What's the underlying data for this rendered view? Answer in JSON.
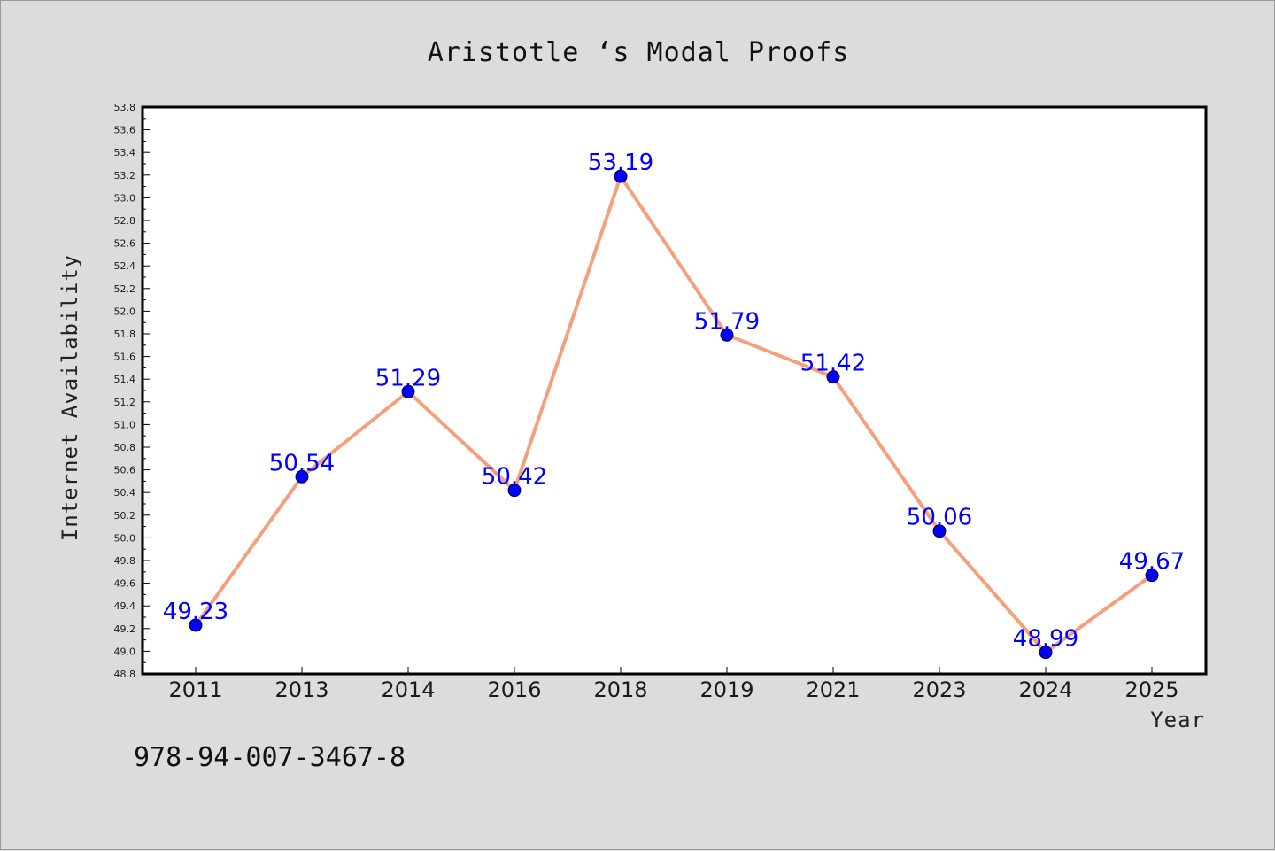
{
  "chart_data": {
    "type": "line",
    "title": "Aristotle ‘s Modal Proofs",
    "xlabel": "Year",
    "ylabel": "Internet Availability",
    "categories": [
      "2011",
      "2013",
      "2014",
      "2016",
      "2018",
      "2019",
      "2021",
      "2023",
      "2024",
      "2025"
    ],
    "series": [
      {
        "values": [
          49.23,
          50.54,
          51.29,
          50.42,
          53.19,
          51.79,
          51.42,
          50.06,
          48.99,
          49.67
        ],
        "labels": [
          "49.23",
          "50.54",
          "51.29",
          "50.42",
          "53.19",
          "51.79",
          "51.42",
          "50.06",
          "48.99",
          "49.67"
        ]
      }
    ],
    "ylim": [
      48.8,
      53.8
    ],
    "ytick_step": 0.2,
    "grid": false,
    "legend": "none",
    "line_color": "#f4a07c",
    "marker_color": "#0000ff",
    "label_color": "#0000ff"
  },
  "annotation": {
    "isbn": "978-94-007-3467-8"
  }
}
